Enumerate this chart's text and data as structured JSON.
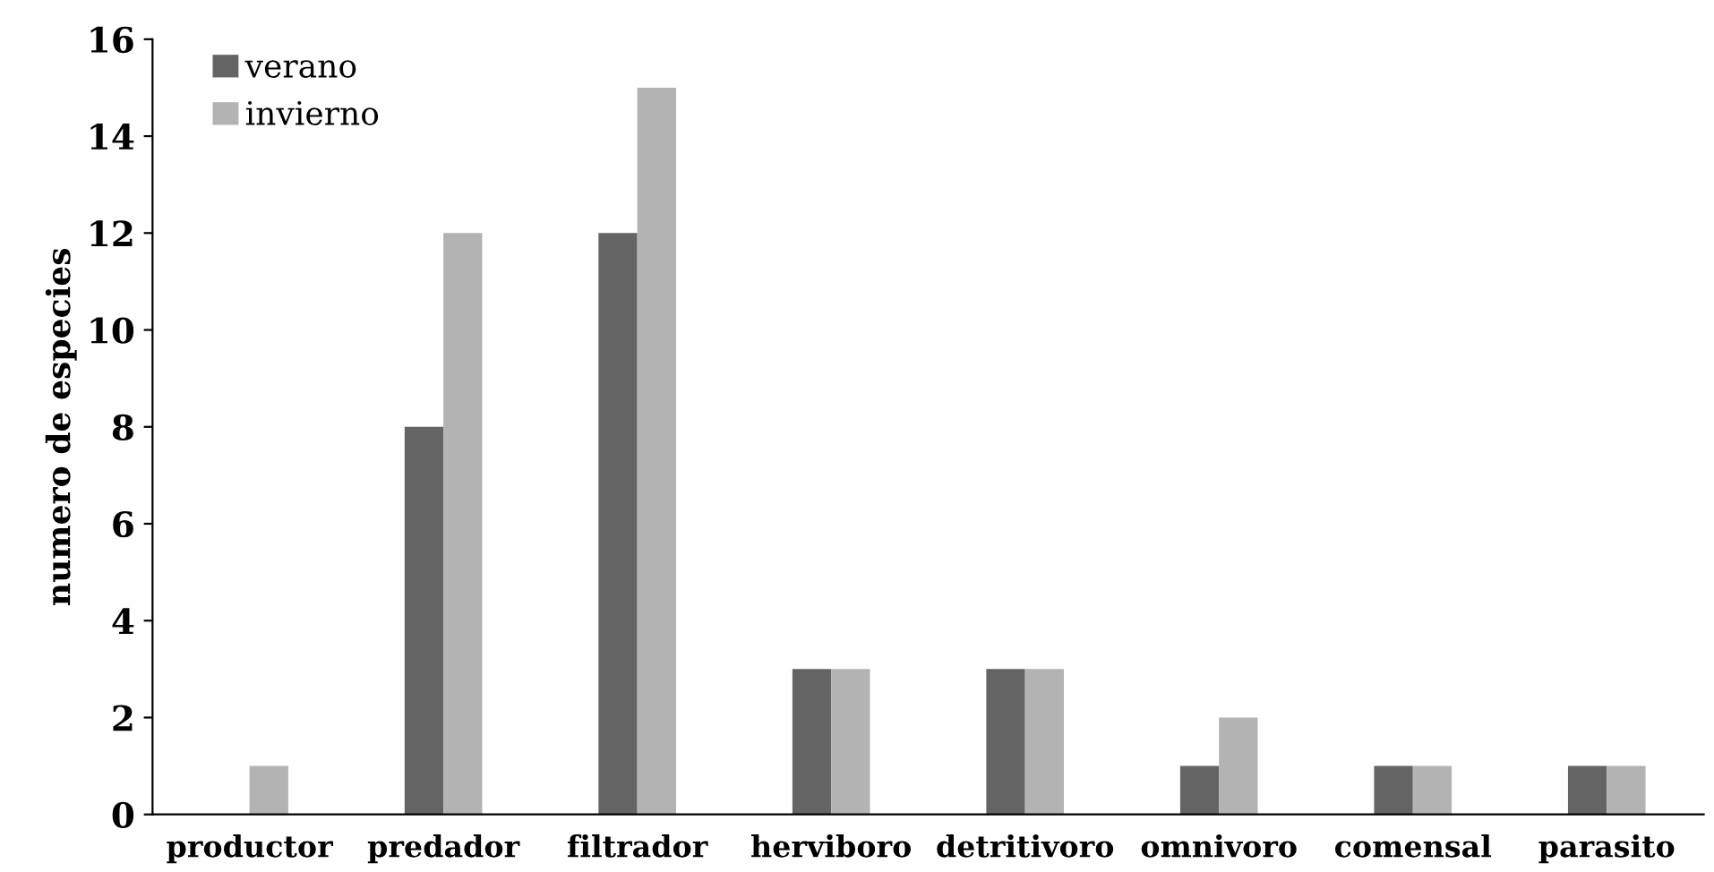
{
  "chart_data": {
    "type": "bar",
    "ylabel": "numero de especies",
    "categories": [
      "productor",
      "predador",
      "filtrador",
      "herviboro",
      "detritivoro",
      "omnivoro",
      "comensal",
      "parasito"
    ],
    "series": [
      {
        "name": "verano",
        "color": "#646464",
        "values": [
          0,
          8,
          12,
          3,
          3,
          1,
          1,
          1
        ]
      },
      {
        "name": "invierno",
        "color": "#b3b3b3",
        "values": [
          1,
          12,
          15,
          3,
          3,
          2,
          1,
          1
        ]
      }
    ],
    "ylim": [
      0,
      16
    ],
    "yticks": [
      0,
      2,
      4,
      6,
      8,
      10,
      12,
      14,
      16
    ],
    "grid": false,
    "legend": "top left"
  }
}
